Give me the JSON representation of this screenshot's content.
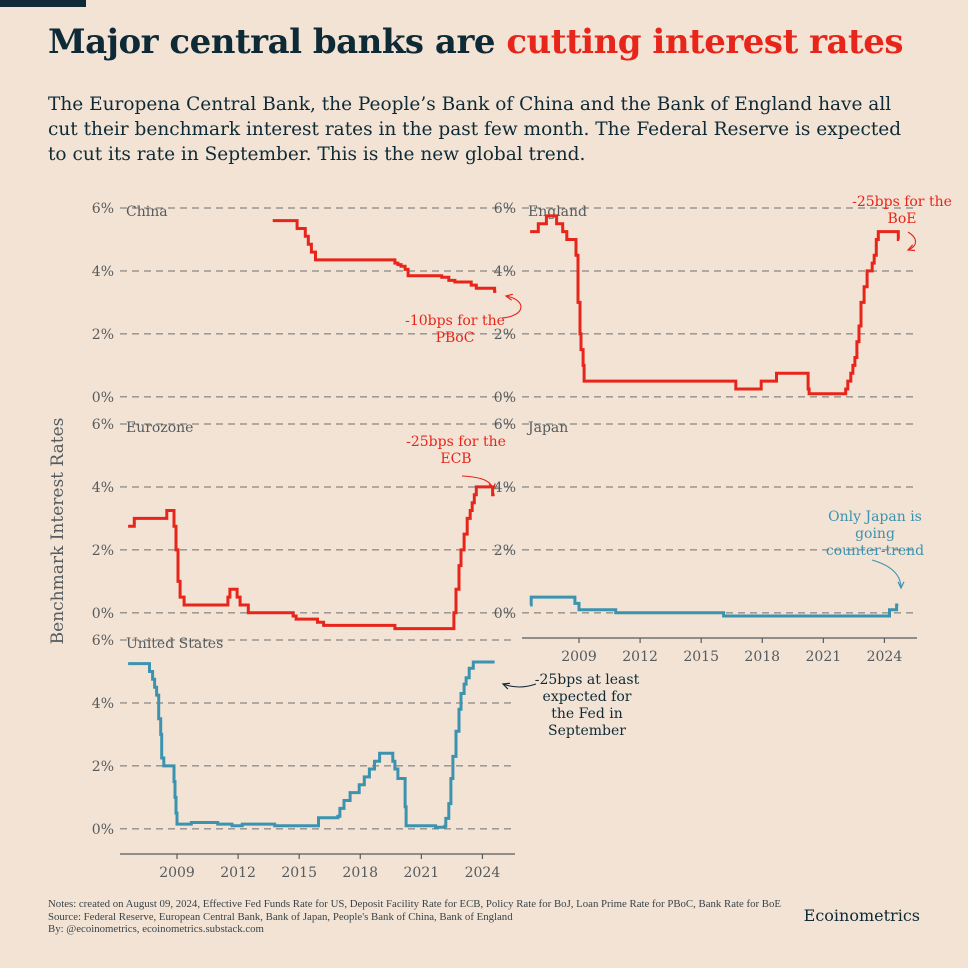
{
  "title": {
    "lead": "Major central banks are ",
    "highlight": "cutting interest rates"
  },
  "subtitle": "The Europena Central Bank, the People’s Bank of China and the Bank of England have all cut their benchmark interest rates in the past few month. The Federal Reserve is expected to cut its rate in September. This is the new global trend.",
  "colors": {
    "background": "#f2e3d5",
    "ink": "#0e2a36",
    "red": "#e8251a",
    "blue": "#3c93b0",
    "grid": "#555b5e"
  },
  "footer": {
    "notes": "Notes: created on August 09, 2024, Effective Fed Funds Rate for US, Deposit Facility Rate for ECB, Policy Rate for BoJ, Loan Prime Rate for PBoC, Bank Rate for BoE",
    "source": "Source: Federal Reserve, European Central Bank, Bank of Japan, People's Bank of China, Bank of England",
    "by": "By: @ecoinometrics, ecoinometrics.substack.com",
    "brand": "Ecoinometrics"
  },
  "chart_data": {
    "type": "line",
    "shape": "step",
    "ylabel": "Benchmark Interest Rates",
    "y_unit": "%",
    "ylim": [
      -0.8,
      6
    ],
    "yticks": [
      "0%",
      "2%",
      "4%",
      "6%"
    ],
    "xlim": [
      2006.2,
      2025.6
    ],
    "xticks": [
      "2009",
      "2012",
      "2015",
      "2018",
      "2021",
      "2024"
    ],
    "grid": "dashed horizontal at 0%, 2%, 4%, 6%",
    "panels": [
      {
        "title": "China",
        "color": "red",
        "annotation": {
          "lines": [
            "-10bps for the",
            "PBoC"
          ],
          "color": "red"
        },
        "series": [
          [
            2013.7,
            5.6
          ],
          [
            2014.0,
            5.6
          ],
          [
            2014.9,
            5.35
          ],
          [
            2015.15,
            5.35
          ],
          [
            2015.3,
            5.1
          ],
          [
            2015.45,
            4.85
          ],
          [
            2015.6,
            4.6
          ],
          [
            2015.8,
            4.35
          ],
          [
            2019.6,
            4.35
          ],
          [
            2019.7,
            4.25
          ],
          [
            2019.85,
            4.2
          ],
          [
            2020.0,
            4.15
          ],
          [
            2020.2,
            4.05
          ],
          [
            2020.35,
            3.85
          ],
          [
            2021.95,
            3.85
          ],
          [
            2022.0,
            3.8
          ],
          [
            2022.35,
            3.7
          ],
          [
            2022.65,
            3.65
          ],
          [
            2023.45,
            3.55
          ],
          [
            2023.7,
            3.45
          ],
          [
            2024.55,
            3.45
          ],
          [
            2024.6,
            3.35
          ],
          [
            2024.68,
            3.35
          ]
        ]
      },
      {
        "title": "England",
        "color": "red",
        "annotation": {
          "lines": [
            "-25bps for the",
            "BoE"
          ],
          "color": "red"
        },
        "series": [
          [
            2006.6,
            5.25
          ],
          [
            2007.0,
            5.5
          ],
          [
            2007.4,
            5.75
          ],
          [
            2007.9,
            5.5
          ],
          [
            2008.2,
            5.25
          ],
          [
            2008.4,
            5.0
          ],
          [
            2008.85,
            4.5
          ],
          [
            2008.95,
            3.0
          ],
          [
            2009.05,
            2.0
          ],
          [
            2009.1,
            1.5
          ],
          [
            2009.2,
            1.0
          ],
          [
            2009.25,
            0.5
          ],
          [
            2016.6,
            0.5
          ],
          [
            2016.7,
            0.25
          ],
          [
            2017.9,
            0.25
          ],
          [
            2017.95,
            0.5
          ],
          [
            2018.6,
            0.5
          ],
          [
            2018.7,
            0.75
          ],
          [
            2020.2,
            0.75
          ],
          [
            2020.25,
            0.25
          ],
          [
            2020.3,
            0.1
          ],
          [
            2021.95,
            0.1
          ],
          [
            2022.1,
            0.25
          ],
          [
            2022.2,
            0.5
          ],
          [
            2022.35,
            0.75
          ],
          [
            2022.45,
            1.0
          ],
          [
            2022.55,
            1.25
          ],
          [
            2022.65,
            1.75
          ],
          [
            2022.75,
            2.25
          ],
          [
            2022.85,
            3.0
          ],
          [
            2023.0,
            3.5
          ],
          [
            2023.15,
            4.0
          ],
          [
            2023.4,
            4.25
          ],
          [
            2023.5,
            4.5
          ],
          [
            2023.6,
            5.0
          ],
          [
            2023.7,
            5.25
          ],
          [
            2024.6,
            5.25
          ],
          [
            2024.68,
            5.0
          ],
          [
            2024.72,
            5.0
          ]
        ]
      },
      {
        "title": "Eurozone",
        "color": "red",
        "annotation": {
          "lines": [
            "-25bps for the",
            "ECB"
          ],
          "color": "red"
        },
        "series": [
          [
            2006.6,
            2.75
          ],
          [
            2006.9,
            3.0
          ],
          [
            2007.8,
            3.0
          ],
          [
            2008.5,
            3.25
          ],
          [
            2008.75,
            3.25
          ],
          [
            2008.85,
            2.75
          ],
          [
            2008.95,
            2.0
          ],
          [
            2009.05,
            1.0
          ],
          [
            2009.15,
            0.5
          ],
          [
            2009.35,
            0.25
          ],
          [
            2011.3,
            0.25
          ],
          [
            2011.5,
            0.5
          ],
          [
            2011.6,
            0.75
          ],
          [
            2011.95,
            0.5
          ],
          [
            2012.1,
            0.25
          ],
          [
            2012.5,
            0.0
          ],
          [
            2014.45,
            0.0
          ],
          [
            2014.7,
            -0.1
          ],
          [
            2014.85,
            -0.2
          ],
          [
            2015.9,
            -0.3
          ],
          [
            2016.2,
            -0.4
          ],
          [
            2019.7,
            -0.5
          ],
          [
            2022.55,
            -0.5
          ],
          [
            2022.6,
            0.0
          ],
          [
            2022.7,
            0.75
          ],
          [
            2022.85,
            1.5
          ],
          [
            2022.95,
            2.0
          ],
          [
            2023.1,
            2.5
          ],
          [
            2023.25,
            3.0
          ],
          [
            2023.4,
            3.25
          ],
          [
            2023.5,
            3.5
          ],
          [
            2023.6,
            3.75
          ],
          [
            2023.7,
            4.0
          ],
          [
            2024.45,
            4.0
          ],
          [
            2024.5,
            3.75
          ],
          [
            2024.6,
            3.75
          ]
        ]
      },
      {
        "title": "Japan",
        "color": "blue",
        "annotation": {
          "lines": [
            "Only Japan is",
            "going",
            "counter-trend"
          ],
          "color": "blue"
        },
        "series": [
          [
            2006.6,
            0.25
          ],
          [
            2006.65,
            0.5
          ],
          [
            2008.5,
            0.5
          ],
          [
            2008.8,
            0.3
          ],
          [
            2009.0,
            0.1
          ],
          [
            2010.7,
            0.1
          ],
          [
            2010.8,
            0.0
          ],
          [
            2016.05,
            0.0
          ],
          [
            2016.1,
            -0.1
          ],
          [
            2024.2,
            -0.1
          ],
          [
            2024.25,
            0.1
          ],
          [
            2024.55,
            0.1
          ],
          [
            2024.6,
            0.25
          ],
          [
            2024.68,
            0.25
          ]
        ]
      },
      {
        "title": "United States",
        "color": "blue",
        "annotation": {
          "lines": [
            "-25bps at least",
            "expected for",
            "the Fed in",
            "September"
          ],
          "color": "ink"
        },
        "series": [
          [
            2006.6,
            5.25
          ],
          [
            2007.5,
            5.25
          ],
          [
            2007.65,
            5.0
          ],
          [
            2007.8,
            4.75
          ],
          [
            2007.9,
            4.5
          ],
          [
            2008.0,
            4.25
          ],
          [
            2008.1,
            3.5
          ],
          [
            2008.2,
            3.0
          ],
          [
            2008.25,
            2.25
          ],
          [
            2008.35,
            2.0
          ],
          [
            2008.8,
            2.0
          ],
          [
            2008.85,
            1.5
          ],
          [
            2008.9,
            1.0
          ],
          [
            2008.95,
            0.5
          ],
          [
            2009.0,
            0.15
          ],
          [
            2009.5,
            0.15
          ],
          [
            2009.7,
            0.2
          ],
          [
            2010.5,
            0.2
          ],
          [
            2011.0,
            0.15
          ],
          [
            2011.7,
            0.1
          ],
          [
            2012.2,
            0.15
          ],
          [
            2013.5,
            0.15
          ],
          [
            2013.8,
            0.1
          ],
          [
            2015.9,
            0.1
          ],
          [
            2015.95,
            0.35
          ],
          [
            2016.9,
            0.4
          ],
          [
            2017.0,
            0.65
          ],
          [
            2017.2,
            0.9
          ],
          [
            2017.5,
            1.15
          ],
          [
            2017.95,
            1.4
          ],
          [
            2018.2,
            1.65
          ],
          [
            2018.45,
            1.9
          ],
          [
            2018.7,
            2.15
          ],
          [
            2018.95,
            2.4
          ],
          [
            2019.55,
            2.4
          ],
          [
            2019.6,
            2.15
          ],
          [
            2019.7,
            1.9
          ],
          [
            2019.85,
            1.6
          ],
          [
            2020.15,
            1.6
          ],
          [
            2020.2,
            0.7
          ],
          [
            2020.25,
            0.1
          ],
          [
            2021.5,
            0.1
          ],
          [
            2021.7,
            0.05
          ],
          [
            2022.15,
            0.08
          ],
          [
            2022.2,
            0.33
          ],
          [
            2022.35,
            0.8
          ],
          [
            2022.45,
            1.6
          ],
          [
            2022.55,
            2.3
          ],
          [
            2022.7,
            3.1
          ],
          [
            2022.85,
            3.8
          ],
          [
            2022.95,
            4.3
          ],
          [
            2023.1,
            4.6
          ],
          [
            2023.2,
            4.8
          ],
          [
            2023.35,
            5.1
          ],
          [
            2023.55,
            5.3
          ],
          [
            2024.6,
            5.3
          ]
        ]
      }
    ]
  }
}
